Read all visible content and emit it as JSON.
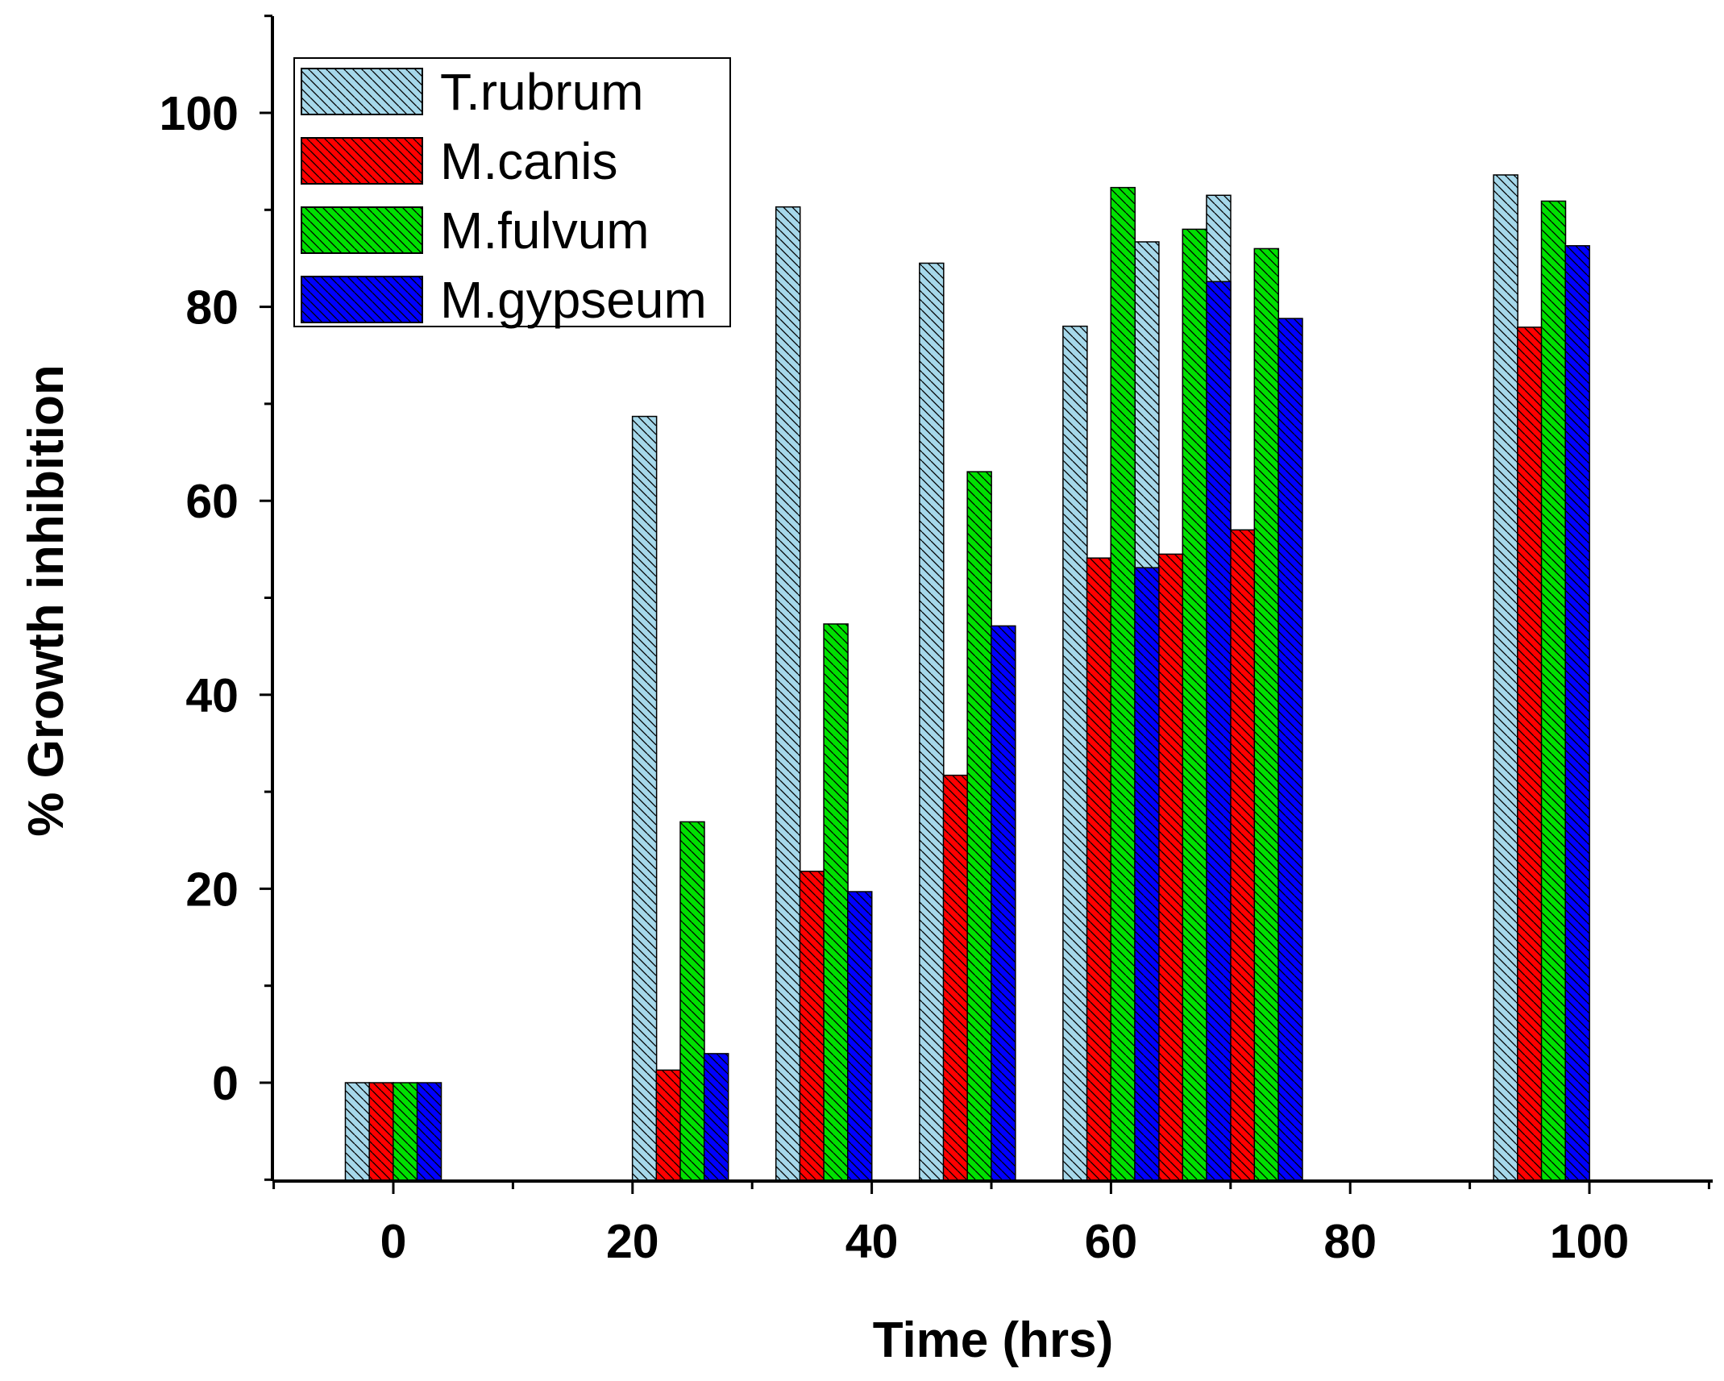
{
  "chart_data": {
    "type": "bar",
    "title": "",
    "xlabel": "Time (hrs)",
    "ylabel": "% Growth inhibition",
    "xlim": [
      -10,
      110
    ],
    "ylim": [
      -10,
      110
    ],
    "x_ticks": [
      0,
      20,
      40,
      60,
      80,
      100
    ],
    "y_ticks": [
      0,
      20,
      40,
      60,
      80,
      100
    ],
    "grid": false,
    "legend_position": "top-left",
    "bar_fill": "diagonal-hatch",
    "series": [
      {
        "name": "T.rubrum",
        "color": "#a6d8ea",
        "points": [
          {
            "x": -3,
            "y": 0
          },
          {
            "x": 21,
            "y": 68.7
          },
          {
            "x": 33,
            "y": 90.3
          },
          {
            "x": 45,
            "y": 84.5
          },
          {
            "x": 57,
            "y": 78
          },
          {
            "x": 63,
            "y": 86.7
          },
          {
            "x": 69,
            "y": 91.5
          },
          {
            "x": 93,
            "y": 93.6
          }
        ]
      },
      {
        "name": "M.canis",
        "color": "#ff0000",
        "points": [
          {
            "x": -1,
            "y": 0
          },
          {
            "x": 23,
            "y": 1.3
          },
          {
            "x": 35,
            "y": 21.8
          },
          {
            "x": 47,
            "y": 31.7
          },
          {
            "x": 59,
            "y": 54.1
          },
          {
            "x": 65,
            "y": 54.5
          },
          {
            "x": 71,
            "y": 57
          },
          {
            "x": 95,
            "y": 77.9
          }
        ]
      },
      {
        "name": "M.fulvum",
        "color": "#00e000",
        "points": [
          {
            "x": 1,
            "y": 0
          },
          {
            "x": 25,
            "y": 26.9
          },
          {
            "x": 37,
            "y": 47.3
          },
          {
            "x": 49,
            "y": 63
          },
          {
            "x": 61,
            "y": 92.3
          },
          {
            "x": 67,
            "y": 88
          },
          {
            "x": 73,
            "y": 86
          },
          {
            "x": 97,
            "y": 90.9
          }
        ]
      },
      {
        "name": "M.gypseum",
        "color": "#0000ff",
        "points": [
          {
            "x": 3,
            "y": 0
          },
          {
            "x": 27,
            "y": 3
          },
          {
            "x": 39,
            "y": 19.7
          },
          {
            "x": 51,
            "y": 47.1
          },
          {
            "x": 63,
            "y": 53.1
          },
          {
            "x": 69,
            "y": 82.6
          },
          {
            "x": 75,
            "y": 78.8
          },
          {
            "x": 99,
            "y": 86.3
          }
        ]
      }
    ]
  }
}
